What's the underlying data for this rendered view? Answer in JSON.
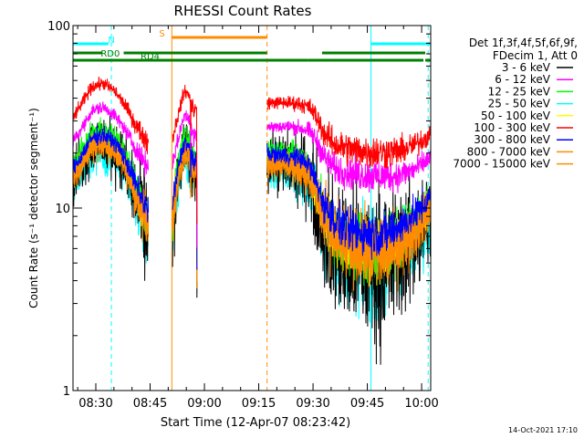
{
  "chart_data": {
    "type": "line",
    "title": "RHESSI Count Rates",
    "xlabel": "Start Time (12-Apr-07 08:23:42)",
    "ylabel": "Count Rate (s⁻¹ detector segment⁻¹)",
    "yscale": "log",
    "ylim": [
      1,
      100
    ],
    "xlim_minutes": [
      503.7,
      602.5
    ],
    "y_ticks": [
      {
        "value": 1,
        "label": "1"
      },
      {
        "value": 10,
        "label": "10"
      },
      {
        "value": 100,
        "label": "100"
      }
    ],
    "x_ticks": [
      {
        "value": 510,
        "label": "08:30"
      },
      {
        "value": 525,
        "label": "08:45"
      },
      {
        "value": 540,
        "label": "09:00"
      },
      {
        "value": 555,
        "label": "09:15"
      },
      {
        "value": 570,
        "label": "09:30"
      },
      {
        "value": 585,
        "label": "09:45"
      },
      {
        "value": 600,
        "label": "10:00"
      }
    ],
    "legend_header": [
      "Det 1f,3f,4f,5f,6f,9f,",
      "FDecim 1, Att 0"
    ],
    "legend_position": "right",
    "series": [
      {
        "name": "3 - 6 keV",
        "color": "#000000",
        "base": 1.0,
        "dip": 1.0,
        "noise": 0.14
      },
      {
        "name": "6 - 12 keV",
        "color": "#ff00ff",
        "base": 1.55,
        "dip": 0.0,
        "noise": 0.03
      },
      {
        "name": "12 - 25 keV",
        "color": "#00ff00",
        "base": 1.15,
        "dip": 0.85,
        "noise": 0.06
      },
      {
        "name": "25 - 50 keV",
        "color": "#00ffff",
        "base": 0.88,
        "dip": 0.8,
        "noise": 0.09
      },
      {
        "name": "50 - 100 keV",
        "color": "#ffff00",
        "base": 1.05,
        "dip": 0.8,
        "noise": 0.05
      },
      {
        "name": "100 - 300 keV",
        "color": "#ff0000",
        "base": 2.1,
        "dip": 0.0,
        "noise": 0.03
      },
      {
        "name": "300 - 800 keV",
        "color": "#0000ff",
        "base": 1.1,
        "dip": 0.55,
        "noise": 0.04
      },
      {
        "name": "800 - 7000 keV",
        "color": "#ff8c00",
        "base": 1.0,
        "dip": 0.65,
        "noise": 0.05
      },
      {
        "name": "7000 - 15000 keV",
        "color": "#ff8c00",
        "base": 0.97,
        "dip": 0.72,
        "noise": 0.07
      }
    ],
    "draw_order": [
      3,
      0,
      4,
      2,
      8,
      7,
      6,
      1,
      5
    ],
    "envelope_shape": {
      "segment_1_minutes": [
        503.7,
        524.5
      ],
      "segment_2_minutes": [
        531.2,
        538.0
      ],
      "data_gap_minutes": [
        538.0,
        557.3
      ],
      "segment_3_minutes": [
        557.3,
        602.5
      ],
      "knots_segment_1": [
        [
          503.7,
          14.8
        ],
        [
          506,
          17.5
        ],
        [
          509,
          22
        ],
        [
          512,
          23
        ],
        [
          515,
          21
        ],
        [
          518,
          17.5
        ],
        [
          521,
          13.5
        ],
        [
          524.5,
          10.8
        ]
      ],
      "knots_segment_2": [
        [
          531.2,
          11.5
        ],
        [
          533,
          16
        ],
        [
          534.5,
          21
        ],
        [
          535.8,
          19.5
        ],
        [
          537,
          17.5
        ],
        [
          538,
          16
        ]
      ],
      "knots_segment_3": [
        [
          557.3,
          18
        ],
        [
          562,
          18
        ],
        [
          566,
          17.8
        ],
        [
          569,
          17
        ],
        [
          571,
          15
        ],
        [
          573,
          12.3
        ],
        [
          576,
          10.6
        ],
        [
          580,
          10
        ],
        [
          585,
          9.7
        ],
        [
          590,
          9.6
        ],
        [
          594,
          9.8
        ],
        [
          598,
          10.5
        ],
        [
          601,
          11.5
        ],
        [
          602.5,
          12.3
        ]
      ],
      "dip_profile_minutes": [
        [
          503.7,
          0
        ],
        [
          517,
          0
        ],
        [
          521,
          0.25
        ],
        [
          524.5,
          0.6
        ],
        [
          524.6,
          0.6
        ],
        [
          527,
          1.0
        ],
        [
          529.5,
          1.0
        ],
        [
          531,
          0.6
        ],
        [
          533,
          0
        ],
        [
          560,
          0
        ],
        [
          568,
          0.15
        ],
        [
          573,
          0.7
        ],
        [
          580,
          1.0
        ],
        [
          590,
          1.0
        ],
        [
          596,
          0.7
        ],
        [
          602.5,
          0.4
        ]
      ],
      "spikes_minutes": [
        [
          535.8,
          1.0
        ],
        [
          536.2,
          0.72
        ],
        [
          536.6,
          0.9
        ],
        [
          537.1,
          0.85
        ],
        [
          538.0,
          0.25
        ]
      ]
    },
    "flag_bars": [
      {
        "label": "N",
        "color": "#00ffff",
        "y_pos": 1,
        "segments": [
          [
            503.7,
            513.5
          ],
          [
            586.0,
            602.5
          ]
        ],
        "label_at": 514.3
      },
      {
        "label": "S",
        "color": "#ff8c00",
        "y_pos": 2,
        "segments": [
          [
            531.0,
            557.3
          ]
        ],
        "label_at": 528.3
      },
      {
        "label": "RD0",
        "color": "#008000",
        "y_pos": 3,
        "segments": [
          [
            503.7,
            511.8
          ],
          [
            517.7,
            557.3
          ],
          [
            572.5,
            601.0
          ]
        ],
        "label_at": 514.0
      },
      {
        "label": "RD4",
        "color": "#008000",
        "y_pos": 4,
        "segments": [
          [
            503.7,
            557.3
          ],
          [
            557.3,
            568.5
          ],
          [
            568.5,
            600.5
          ],
          [
            601.0,
            602.5
          ]
        ],
        "label_at": 525.0
      }
    ],
    "vertical_lines": [
      {
        "minutes": 503.7,
        "color": "#00ffff",
        "style": "solid"
      },
      {
        "minutes": 514.3,
        "color": "#00ffff",
        "style": "dashed"
      },
      {
        "minutes": 531.0,
        "color": "#ff8c00",
        "style": "solid"
      },
      {
        "minutes": 557.3,
        "color": "#ff8c00",
        "style": "dashed"
      },
      {
        "minutes": 586.0,
        "color": "#00ffff",
        "style": "solid"
      },
      {
        "minutes": 601.8,
        "color": "#00ffff",
        "style": "dashed"
      }
    ],
    "footer_timestamp": "14-Oct-2021 17:10"
  }
}
